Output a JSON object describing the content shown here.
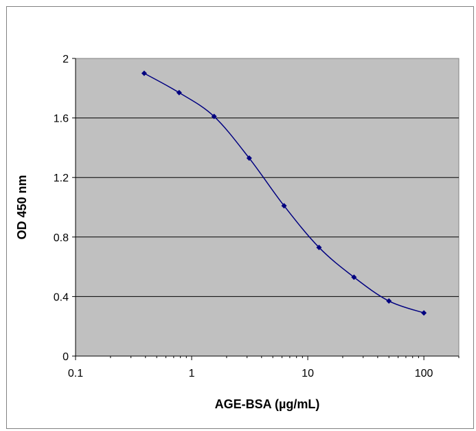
{
  "chart_data": {
    "type": "line",
    "title": "",
    "xlabel": "AGE-BSA (µg/mL)",
    "ylabel": "OD 450 nm",
    "x_scale": "log",
    "xlim": [
      0.1,
      200
    ],
    "ylim": [
      0,
      2
    ],
    "x_ticks": [
      0.1,
      1,
      10,
      100
    ],
    "x_tick_labels": [
      "0.1",
      "1",
      "10",
      "100"
    ],
    "y_ticks": [
      0,
      0.4,
      0.8,
      1.2,
      1.6,
      2
    ],
    "y_tick_labels": [
      "0",
      "0.4",
      "0.8",
      "1.2",
      "1.6",
      "2"
    ],
    "grid": "horizontal",
    "legend": "none",
    "series": [
      {
        "x": [
          0.39,
          0.78,
          1.56,
          3.13,
          6.25,
          12.5,
          25,
          50,
          100
        ],
        "y": [
          1.9,
          1.77,
          1.61,
          1.33,
          1.01,
          0.73,
          0.53,
          0.37,
          0.29
        ],
        "color": "#000080",
        "marker": "diamond"
      }
    ],
    "plot_background": "#c0c0c0",
    "gridline_color": "#000000"
  }
}
